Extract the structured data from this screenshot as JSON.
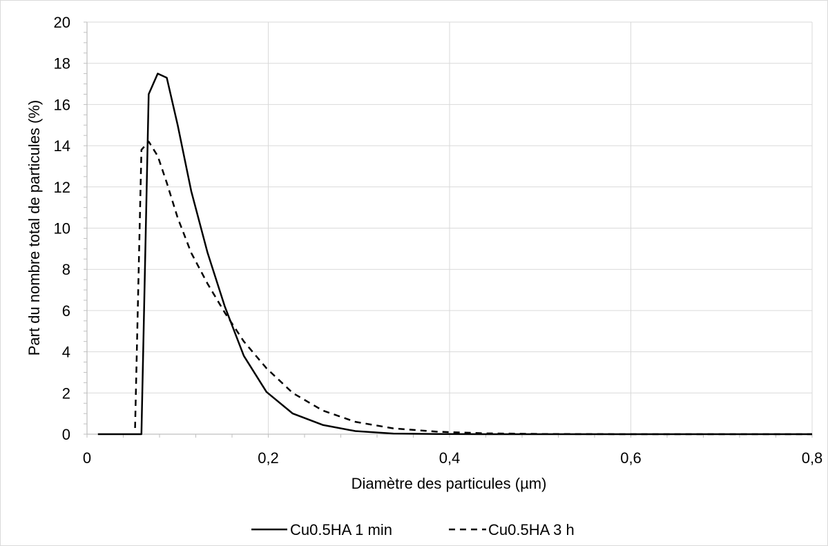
{
  "chart_data": {
    "type": "line",
    "title": "",
    "xlabel": "Diamètre des particules (µm)",
    "ylabel": "Part du nombre total de particules (%)",
    "xlim": [
      0,
      0.8
    ],
    "ylim": [
      0,
      20
    ],
    "x_ticks": [
      0,
      0.2,
      0.4,
      0.6,
      0.8
    ],
    "x_tick_labels": [
      "0",
      "0,2",
      "0,4",
      "0,6",
      "0,8"
    ],
    "y_ticks": [
      0,
      2,
      4,
      6,
      8,
      10,
      12,
      14,
      16,
      18,
      20
    ],
    "y_tick_labels": [
      "0",
      "2",
      "4",
      "6",
      "8",
      "10",
      "12",
      "14",
      "16",
      "18",
      "20"
    ],
    "grid": true,
    "legend_position": "bottom",
    "colors": {
      "line": "#000000",
      "grid": "#d9d9d9",
      "axis": "#bfbfbf",
      "frame": "#d9d9d9"
    },
    "series": [
      {
        "name": "Cu0.5HA 1 min",
        "style": "solid",
        "x": [
          0.012,
          0.058,
          0.06,
          0.068,
          0.078,
          0.088,
          0.1,
          0.115,
          0.133,
          0.152,
          0.173,
          0.198,
          0.227,
          0.26,
          0.296,
          0.338,
          0.386,
          0.44,
          0.5,
          0.6,
          0.7,
          0.8
        ],
        "y": [
          0,
          0,
          0,
          16.5,
          17.5,
          17.3,
          15.0,
          11.8,
          8.8,
          6.2,
          3.8,
          2.05,
          1.0,
          0.45,
          0.15,
          0.03,
          0.01,
          0,
          0,
          0,
          0,
          0
        ]
      },
      {
        "name": "Cu0.5HA 3 h",
        "style": "dashed",
        "x": [
          0.053,
          0.06,
          0.068,
          0.078,
          0.088,
          0.1,
          0.115,
          0.133,
          0.152,
          0.173,
          0.198,
          0.227,
          0.26,
          0.296,
          0.338,
          0.386,
          0.44,
          0.5,
          0.6,
          0.7,
          0.8
        ],
        "y": [
          0.3,
          13.8,
          14.2,
          13.5,
          12.2,
          10.5,
          8.8,
          7.3,
          5.9,
          4.5,
          3.2,
          2.0,
          1.15,
          0.6,
          0.28,
          0.12,
          0.04,
          0.01,
          0,
          0,
          0
        ]
      }
    ]
  }
}
